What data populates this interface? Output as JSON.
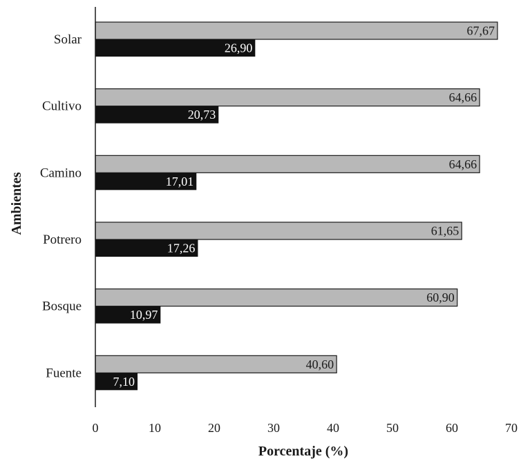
{
  "chart_data": {
    "type": "bar",
    "orientation": "horizontal",
    "categories": [
      "Solar",
      "Cultivo",
      "Camino",
      "Potrero",
      "Bosque",
      "Fuente"
    ],
    "series": [
      {
        "values": [
          67.67,
          64.66,
          64.66,
          61.65,
          60.9,
          40.6
        ],
        "color": "#b8b8b8",
        "labels": [
          "67,67",
          "64,66",
          "64,66",
          "61,65",
          "60,90",
          "40,60"
        ]
      },
      {
        "values": [
          26.9,
          20.73,
          17.01,
          17.26,
          10.97,
          7.1
        ],
        "color": "#111111",
        "labels": [
          "26,90",
          "20,73",
          "17,01",
          "17,26",
          "10,97",
          "7,10"
        ]
      }
    ],
    "xlabel": "Porcentaje (%)",
    "ylabel": "Ambientes",
    "xlim": [
      0,
      70
    ],
    "xticks": [
      0,
      10,
      20,
      30,
      40,
      50,
      60,
      70
    ],
    "grid": false,
    "legend": "none"
  }
}
